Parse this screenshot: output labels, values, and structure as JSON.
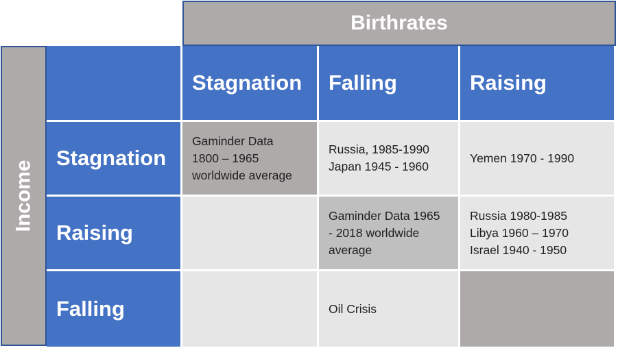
{
  "column_axis_title": "Birthrates",
  "row_axis_title": "Income",
  "column_headers": [
    "Stagnation",
    "Falling",
    "Raising"
  ],
  "row_headers": [
    "Stagnation",
    "Raising",
    "Falling"
  ],
  "cells": {
    "stagnation_stagnation": [
      "Gaminder Data",
      "1800 – 1965",
      "worldwide average"
    ],
    "stagnation_falling": [
      "Russia, 1985-1990",
      "Japan 1945 - 1960"
    ],
    "stagnation_raising": [
      "Yemen 1970 - 1990"
    ],
    "raising_stagnation": [],
    "raising_falling": [
      "Gaminder Data 1965",
      "- 2018 worldwide",
      "average"
    ],
    "raising_raising": [
      "Russia 1980-1985",
      "Libya 1960 – 1970",
      "Israel 1940 - 1950"
    ],
    "falling_stagnation": [],
    "falling_falling": [
      "Oil Crisis"
    ],
    "falling_raising": []
  },
  "colors": {
    "header_blue": "#4472c4",
    "axis_grey": "#aeaaaa",
    "cell_light": "#e7e6e6",
    "cell_highlight": "#c9c9c9"
  }
}
